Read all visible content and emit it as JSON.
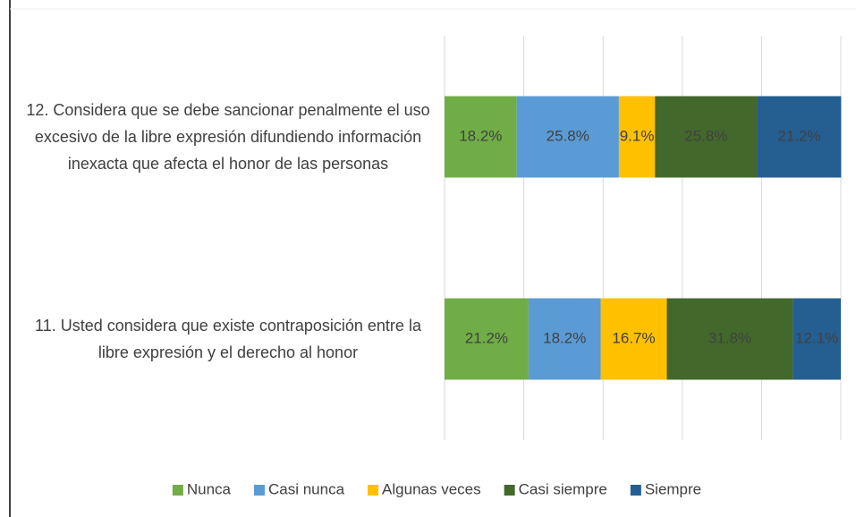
{
  "chart_data": {
    "type": "stacked-bar-horizontal",
    "categories": [
      "12.  Considera que se debe sancionar penalmente el uso excesivo de la libre expresión difundiendo  información inexacta que afecta el honor de las personas",
      "11. Usted considera que existe contraposición entre la libre expresión y el derecho al honor"
    ],
    "series": [
      {
        "name": "Nunca",
        "color": "#70ad47",
        "values": [
          18.2,
          21.2
        ],
        "value_labels": [
          "18.2%",
          "21.2%"
        ]
      },
      {
        "name": "Casi nunca",
        "color": "#5b9bd5",
        "values": [
          25.8,
          18.2
        ],
        "value_labels": [
          "25.8%",
          "18.2%"
        ]
      },
      {
        "name": "Algunas veces",
        "color": "#ffc000",
        "values": [
          9.1,
          16.7
        ],
        "value_labels": [
          "9.1%",
          "16.7%"
        ]
      },
      {
        "name": "Casi siempre",
        "color": "#43682b",
        "values": [
          25.8,
          31.8
        ],
        "value_labels": [
          "25.8%",
          "31.8%"
        ]
      },
      {
        "name": "Siempre",
        "color": "#255e91",
        "values": [
          21.2,
          12.1
        ],
        "value_labels": [
          "21.2%",
          "12.1%"
        ]
      }
    ],
    "xlim": [
      0,
      100
    ],
    "xticks": [
      0,
      20,
      40,
      60,
      80,
      100
    ],
    "show_tick_labels": false,
    "grid": true,
    "legend": "bottom"
  }
}
